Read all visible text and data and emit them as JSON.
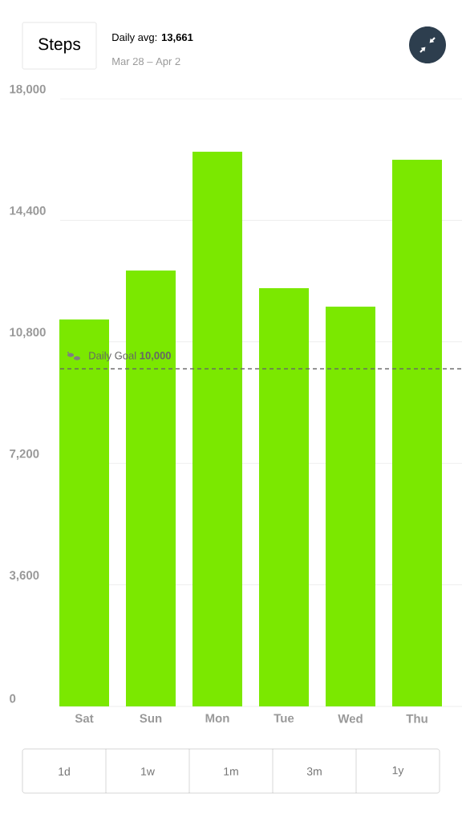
{
  "chart_data": {
    "type": "bar",
    "title": "Steps",
    "subtitle": "Daily avg: **13,661**",
    "categories": [
      "Sat",
      "Sun",
      "Mon",
      "Tue",
      "Wed",
      "Thu"
    ],
    "values": [
      11460,
      12910,
      16430,
      12390,
      11840,
      16190
    ],
    "color": "#7be800",
    "ylim": [
      0,
      18000
    ],
    "yticks": [
      {
        "value": 0,
        "label": "0"
      },
      {
        "value": 3600,
        "label": "3,600"
      },
      {
        "value": 7200,
        "label": "7,200"
      },
      {
        "value": 10800,
        "label": "10,800"
      },
      {
        "value": 14400,
        "label": "14,400"
      },
      {
        "value": 18000,
        "label": "18,000"
      }
    ],
    "grid": "y",
    "ref_lines": [
      {
        "axis": "y",
        "value": 10000,
        "label": "Daily Goal **10,000**",
        "color": "#666666",
        "line_style": "dashed"
      }
    ],
    "annotations": [
      "Mar 28 – Apr 2",
      "1d",
      "1w",
      "1m",
      "3m",
      "1y"
    ]
  }
}
